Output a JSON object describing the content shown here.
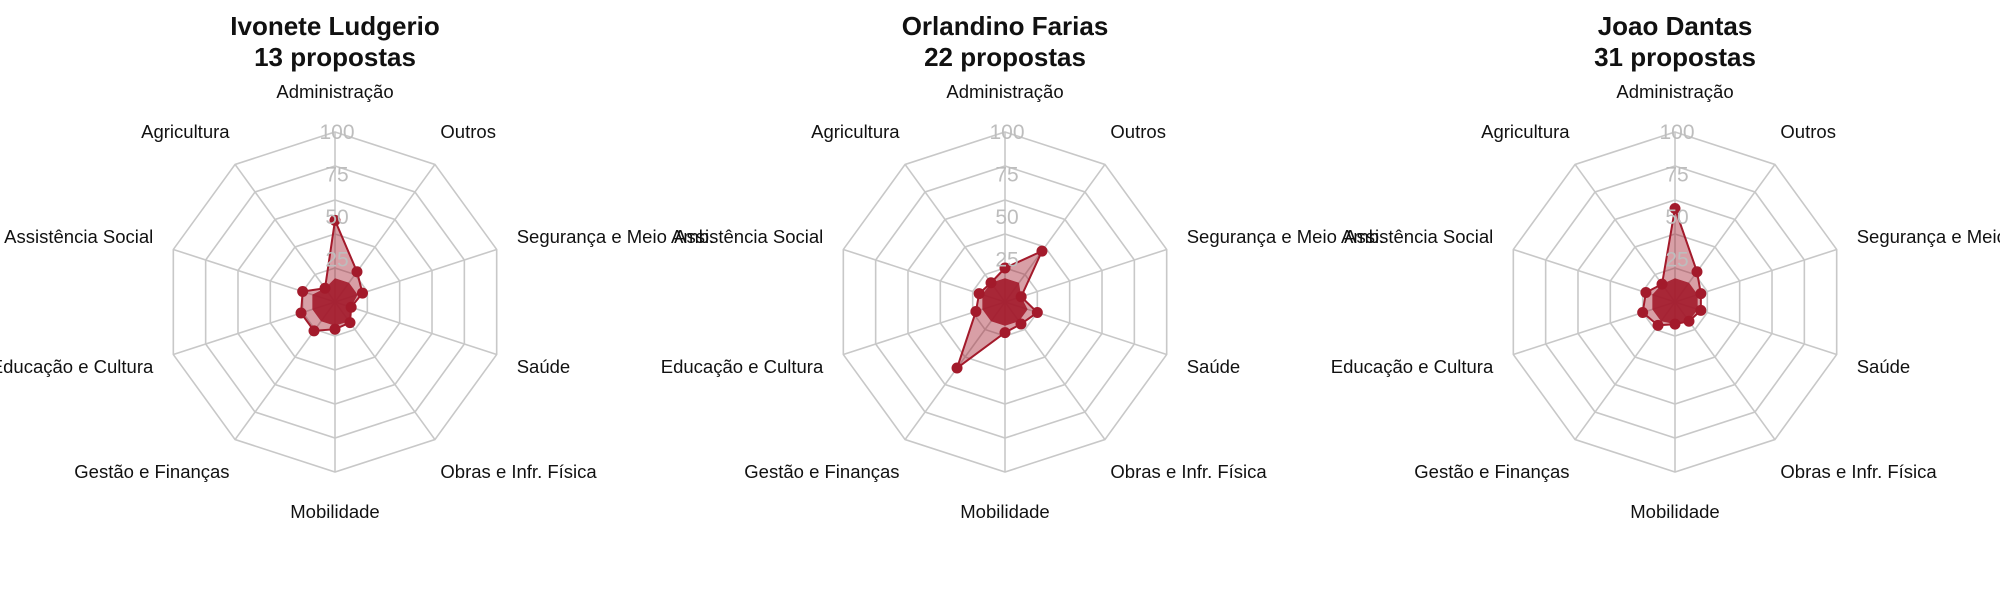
{
  "colors": {
    "fill": "#a31a2b",
    "line": "#a31a2b",
    "grid": "#c8c8c8",
    "tick": "#bdbdbd"
  },
  "chart_data": [
    {
      "type": "radar",
      "title": "Ivonete Ludgerio",
      "subtitle": "13 propostas",
      "categories": [
        "Administração",
        "Outros",
        "Segurança e Meio Amb.",
        "Saúde",
        "Obras e Infr. Física",
        "Mobilidade",
        "Gestão e Finanças",
        "Educação e Cultura",
        "Assistência Social",
        "Agricultura"
      ],
      "values": [
        48,
        22,
        17,
        10,
        15,
        16,
        21,
        21,
        20,
        10
      ],
      "rticks": [
        "25",
        "50",
        "75",
        "100"
      ],
      "rlim": [
        0,
        100
      ]
    },
    {
      "type": "radar",
      "title": "Orlandino Farias",
      "subtitle": "22 propostas",
      "categories": [
        "Administração",
        "Outros",
        "Segurança e Meio Amb.",
        "Saúde",
        "Obras e Infr. Física",
        "Mobilidade",
        "Gestão e Finanças",
        "Educação e Cultura",
        "Assistência Social",
        "Agricultura"
      ],
      "values": [
        20,
        37,
        10,
        20,
        16,
        18,
        48,
        18,
        16,
        14
      ],
      "rticks": [
        "25",
        "50",
        "75",
        "100"
      ],
      "rlim": [
        0,
        100
      ]
    },
    {
      "type": "radar",
      "title": "Joao Dantas",
      "subtitle": "31 propostas",
      "categories": [
        "Administração",
        "Outros",
        "Segurança e Meio Amb.",
        "Saúde",
        "Obras e Infr. Física",
        "Mobilidade",
        "Gestão e Finanças",
        "Educação e Cultura",
        "Assistência Social",
        "Agricultura"
      ],
      "values": [
        55,
        22,
        16,
        16,
        14,
        13,
        17,
        20,
        18,
        13
      ],
      "rticks": [
        "25",
        "50",
        "75",
        "100"
      ],
      "rlim": [
        0,
        100
      ]
    }
  ]
}
